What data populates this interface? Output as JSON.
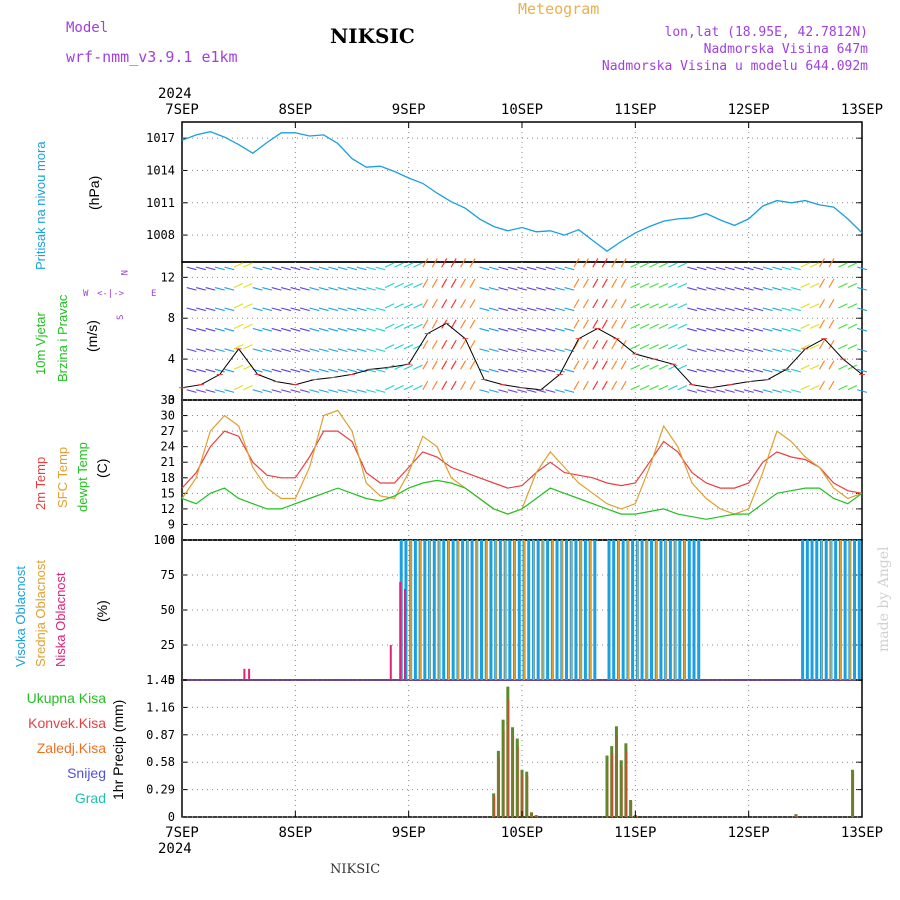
{
  "header": {
    "model_label": "Model",
    "model_name": "wrf-nmm_v3.9.1 e1km",
    "station": "NIKSIC",
    "meteogram": "Meteogram",
    "lonlat": "lon,lat (18.95E, 42.7812N)",
    "elevation": "Nadmorska Visina 647m",
    "model_elevation": "Nadmorska Visina u modelu 644.092m",
    "footer_station": "NIKSIC",
    "credit": "made by Angel"
  },
  "colors": {
    "pressure": "#1a9fe0",
    "temp2m": "#e84040",
    "sfc": "#e0a030",
    "dewpt": "#22c022",
    "cloud_high": "#1a9fe0",
    "cloud_mid": "#e0a030",
    "cloud_low": "#e0207a",
    "snow": "#5050e0",
    "graupel": "#20c0b0",
    "purple": "#a040e0",
    "title_gold": "#e8b050"
  },
  "x_axis": {
    "year": "2024",
    "dates": [
      "7SEP",
      "8SEP",
      "9SEP",
      "10SEP",
      "11SEP",
      "12SEP",
      "13SEP"
    ],
    "hours_total": 144
  },
  "chart_data": [
    {
      "type": "line",
      "panel": "pressure",
      "ylabel_left": "Pritisak na nivou mora",
      "unit": "(hPa)",
      "y_ticks": [
        "1017",
        "1014",
        "1011",
        "1008"
      ],
      "ylim": [
        1005.5,
        1018.5
      ],
      "x_hours": [
        0,
        3,
        6,
        9,
        12,
        15,
        18,
        21,
        24,
        27,
        30,
        33,
        36,
        39,
        42,
        45,
        48,
        51,
        54,
        57,
        60,
        63,
        66,
        69,
        72,
        75,
        78,
        81,
        84,
        87,
        90,
        93,
        96,
        99,
        102,
        105,
        108,
        111,
        114,
        117,
        120,
        123,
        126,
        129,
        132,
        135,
        138,
        141,
        144
      ],
      "series": [
        {
          "values": [
            1016.8,
            1017.3,
            1017.6,
            1017.1,
            1016.4,
            1015.6,
            1016.6,
            1017.5,
            1017.5,
            1017.2,
            1017.3,
            1016.5,
            1015.1,
            1014.3,
            1014.4,
            1013.9,
            1013.3,
            1012.8,
            1011.9,
            1011.1,
            1010.5,
            1009.5,
            1008.8,
            1008.4,
            1008.7,
            1008.3,
            1008.4,
            1008.0,
            1008.5,
            1007.5,
            1006.5,
            1007.4,
            1008.2,
            1008.8,
            1009.3,
            1009.5,
            1009.6,
            1010.0,
            1009.4,
            1008.9,
            1009.5,
            1010.7,
            1011.2,
            1011.0,
            1011.2,
            1010.8,
            1010.6,
            1009.5,
            1008.2
          ]
        }
      ]
    },
    {
      "type": "line",
      "panel": "wind",
      "ylabel_left": "10m Vjetar",
      "ylabel_left2": "Brzina i Pravac",
      "unit": "(m/s)",
      "compass": [
        "N",
        "<-|->",
        "E",
        "W",
        "S"
      ],
      "y_ticks": [
        "12",
        "8",
        "4",
        "0"
      ],
      "ylim": [
        0,
        13.5
      ],
      "x_hours": [
        0,
        4,
        8,
        12,
        16,
        20,
        24,
        28,
        32,
        36,
        40,
        44,
        48,
        52,
        56,
        60,
        64,
        68,
        72,
        76,
        80,
        84,
        88,
        92,
        96,
        100,
        104,
        108,
        112,
        116,
        120,
        124,
        128,
        132,
        136,
        140,
        144
      ],
      "series": [
        {
          "values": [
            1.2,
            1.5,
            2.5,
            5.0,
            2.5,
            1.8,
            1.5,
            2.0,
            2.2,
            2.5,
            3.0,
            3.2,
            3.5,
            6.5,
            7.5,
            6.0,
            2.0,
            1.5,
            1.2,
            1.0,
            2.5,
            6.0,
            7.0,
            6.0,
            4.5,
            4.0,
            3.5,
            1.5,
            1.2,
            1.5,
            1.8,
            2.0,
            3.0,
            5.0,
            6.0,
            4.0,
            2.5
          ]
        }
      ],
      "wind_barbs_rows": [
        1,
        3,
        5,
        7,
        9,
        11,
        13
      ]
    },
    {
      "type": "line",
      "panel": "temperature",
      "ylabel_left": "2m Temp",
      "ylabel_left2": "SFC Temp",
      "ylabel_left3": "dewpt Temp",
      "unit": "(C)",
      "y_ticks": [
        "33",
        "30",
        "27",
        "24",
        "21",
        "18",
        "15",
        "12",
        "9",
        "6"
      ],
      "ylim": [
        6,
        33
      ],
      "x_hours": [
        0,
        3,
        6,
        9,
        12,
        15,
        18,
        21,
        24,
        27,
        30,
        33,
        36,
        39,
        42,
        45,
        48,
        51,
        54,
        57,
        60,
        63,
        66,
        69,
        72,
        75,
        78,
        81,
        84,
        87,
        90,
        93,
        96,
        99,
        102,
        105,
        108,
        111,
        114,
        117,
        120,
        123,
        126,
        129,
        132,
        135,
        138,
        141,
        144
      ],
      "series": [
        {
          "name": "2m Temp",
          "values": [
            16,
            19,
            24,
            27,
            26,
            21,
            18.5,
            18,
            18,
            22,
            27,
            27,
            25,
            19,
            17,
            17,
            20,
            23,
            22,
            20,
            19,
            18,
            17,
            16,
            16.5,
            19,
            21,
            19,
            18.5,
            18,
            17,
            16.5,
            17,
            21,
            25,
            23,
            19,
            17,
            16,
            16,
            17,
            21,
            23,
            22,
            21.5,
            20,
            17,
            15.5,
            15
          ]
        },
        {
          "name": "SFC Temp",
          "values": [
            14,
            18,
            27,
            30,
            28,
            20,
            16,
            14,
            14,
            20,
            30,
            31,
            27,
            17,
            14.5,
            14,
            19,
            26,
            24,
            18,
            16,
            14,
            12,
            11,
            12,
            19,
            23,
            20,
            17,
            15,
            13,
            12,
            13,
            20,
            28,
            24,
            17,
            14,
            12,
            11,
            12,
            19,
            27,
            25,
            22,
            20,
            16,
            14,
            15
          ]
        },
        {
          "name": "dewpt Temp",
          "values": [
            14,
            13,
            15,
            16,
            14,
            13,
            12,
            12,
            13,
            14,
            15,
            16,
            15,
            14,
            13.5,
            14.5,
            16,
            17,
            17.5,
            17,
            16,
            14,
            12,
            11,
            12,
            14,
            16,
            15,
            14,
            13,
            12,
            11,
            11,
            11.5,
            12,
            11,
            10.5,
            10,
            10.5,
            11,
            11,
            13,
            15,
            15.5,
            16,
            16,
            14,
            13,
            15
          ]
        }
      ]
    },
    {
      "type": "bar",
      "panel": "cloud",
      "ylabel_left": "Visoka Oblacnost",
      "ylabel_left2": "Srednja Oblacnost",
      "ylabel_left3": "Niska Oblacnost",
      "unit": "(%)",
      "y_ticks": [
        "100",
        "75",
        "50",
        "25",
        "0"
      ],
      "ylim": [
        0,
        100
      ],
      "note": "full-cloud periods (hours from 7SEP 00UTC)",
      "series": [
        {
          "name": "Visoka Oblacnost",
          "segments": [
            [
              46,
              88
            ],
            [
              90,
              110
            ],
            [
              131,
              144
            ]
          ]
        },
        {
          "name": "Srednja Oblacnost",
          "segments": [
            [
              48,
              88
            ],
            [
              92,
              108
            ],
            [
              135,
              142
            ]
          ]
        },
        {
          "name": "Niska Oblacnost",
          "values_at": [
            [
              13,
              8
            ],
            [
              14,
              8
            ],
            [
              44,
              25
            ],
            [
              46,
              70
            ],
            [
              47,
              65
            ]
          ]
        }
      ]
    },
    {
      "type": "bar",
      "panel": "precip",
      "legend": [
        "Ukupna Kisa",
        "Konvek.Kisa",
        "Zaledj.Kisa",
        "Snijeg",
        "Grad"
      ],
      "ylabel_left": "1hr Precip (mm)",
      "y_ticks": [
        "1.45",
        "1.16",
        "0.87",
        "0.58",
        "0.29",
        "0"
      ],
      "ylim": [
        0,
        1.45
      ],
      "x_hours": [
        66,
        67,
        68,
        69,
        70,
        71,
        72,
        73,
        74,
        75,
        90,
        91,
        92,
        93,
        94,
        95,
        96,
        130,
        142
      ],
      "series": [
        {
          "name": "Ukupna Kisa",
          "values": [
            0.25,
            0.7,
            1.03,
            1.38,
            0.95,
            0.83,
            0.5,
            0.48,
            0.05,
            0.02,
            0.65,
            0.75,
            0.96,
            0.6,
            0.78,
            0.18,
            0.02,
            0.03,
            0.5
          ]
        }
      ]
    }
  ]
}
